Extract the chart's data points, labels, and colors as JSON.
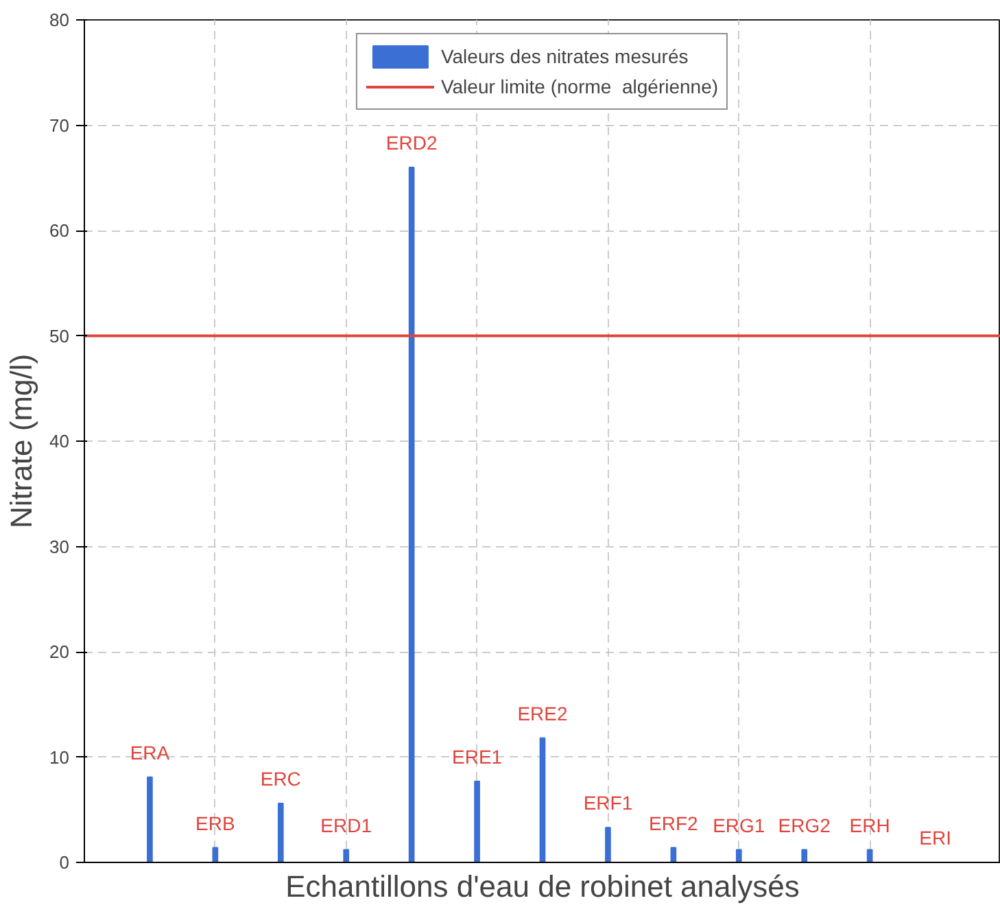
{
  "chart_data": {
    "type": "bar",
    "xlabel": "Echantillons d'eau de robinet analysés",
    "ylabel": "Nitrate (mg/l)",
    "categories": [
      "ERA",
      "ERB",
      "ERC",
      "ERD1",
      "ERD2",
      "ERE1",
      "ERE2",
      "ERF1",
      "ERF2",
      "ERG1",
      "ERG2",
      "ERH",
      "ERI"
    ],
    "series": [
      {
        "name": "Valeurs des nitrates mesurés",
        "color": "#3b6fd4",
        "values": [
          8.1,
          1.4,
          5.6,
          1.2,
          66,
          7.7,
          11.8,
          3.3,
          1.4,
          1.2,
          1.2,
          1.2,
          0
        ]
      }
    ],
    "ref_lines": [
      {
        "axis": "y",
        "value": 50,
        "label": "Valeur limite (norme  algérienne)",
        "color": "#e0443c"
      }
    ],
    "ylim": [
      0,
      80
    ],
    "yticks": [
      0,
      10,
      20,
      30,
      40,
      50,
      60,
      70,
      80
    ],
    "grid": true,
    "legend": "top"
  }
}
